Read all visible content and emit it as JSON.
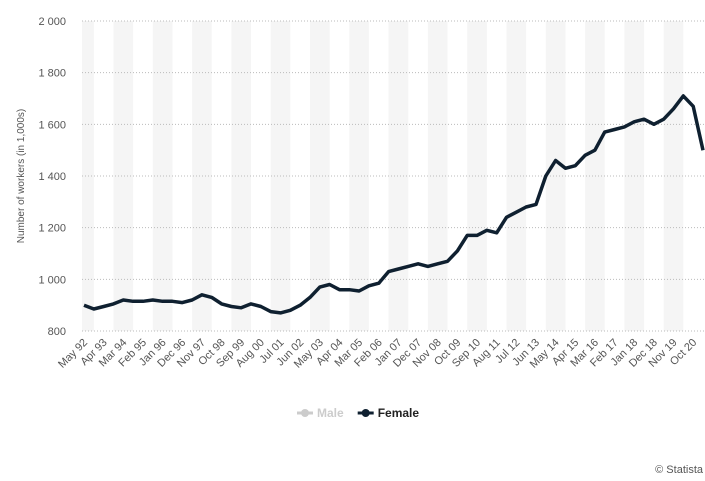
{
  "chart_data": {
    "type": "line",
    "y_label": "Number of workers (in 1,000s)",
    "categories": [
      "May 92",
      null,
      "Apr 93",
      null,
      "Mar 94",
      null,
      "Feb 95",
      null,
      "Jan 96",
      null,
      "Dec 96",
      null,
      "Nov 97",
      null,
      "Oct 98",
      null,
      "Sep 99",
      null,
      "Aug 00",
      null,
      "Jul 01",
      null,
      "Jun 02",
      null,
      "May 03",
      null,
      "Apr 04",
      null,
      "Mar 05",
      null,
      "Feb 06",
      null,
      "Jan 07",
      null,
      "Dec 07",
      null,
      "Nov 08",
      null,
      "Oct 09",
      null,
      "Sep 10",
      null,
      "Aug 11",
      null,
      "Jul 12",
      null,
      "Jun 13",
      null,
      "May 14",
      null,
      "Apr 15",
      null,
      "Mar 16",
      null,
      "Feb 17",
      null,
      "Jan 18",
      null,
      "Dec 18",
      null,
      "Nov 19",
      null,
      "Oct 20",
      null
    ],
    "series": [
      {
        "name": "Female",
        "color": "#0f2030",
        "values": [
          900,
          885,
          895,
          905,
          920,
          915,
          915,
          920,
          915,
          915,
          910,
          920,
          940,
          930,
          905,
          895,
          890,
          905,
          895,
          875,
          870,
          880,
          900,
          930,
          970,
          980,
          960,
          960,
          955,
          975,
          985,
          1030,
          1040,
          1050,
          1060,
          1050,
          1060,
          1070,
          1110,
          1170,
          1170,
          1190,
          1180,
          1240,
          1260,
          1280,
          1290,
          1400,
          1460,
          1430,
          1440,
          1480,
          1500,
          1570,
          1580,
          1590,
          1610,
          1620,
          1600,
          1620,
          1660,
          1710,
          1670,
          1500
        ]
      }
    ],
    "legend": [
      {
        "name": "Male",
        "color": "#cccccc",
        "active": false
      },
      {
        "name": "Female",
        "color": "#0f2030",
        "active": true
      }
    ],
    "ylim": [
      800,
      2000
    ],
    "yticks": [
      800,
      {
        "value": 1000,
        "label": "1 000"
      },
      {
        "value": 1200,
        "label": "1 200"
      },
      {
        "value": 1400,
        "label": "1 400"
      },
      {
        "value": 1600,
        "label": "1 600"
      },
      {
        "value": 1800,
        "label": "1 800"
      },
      {
        "value": 2000,
        "label": "2 000"
      }
    ],
    "grid": true,
    "credit": "© Statista"
  }
}
